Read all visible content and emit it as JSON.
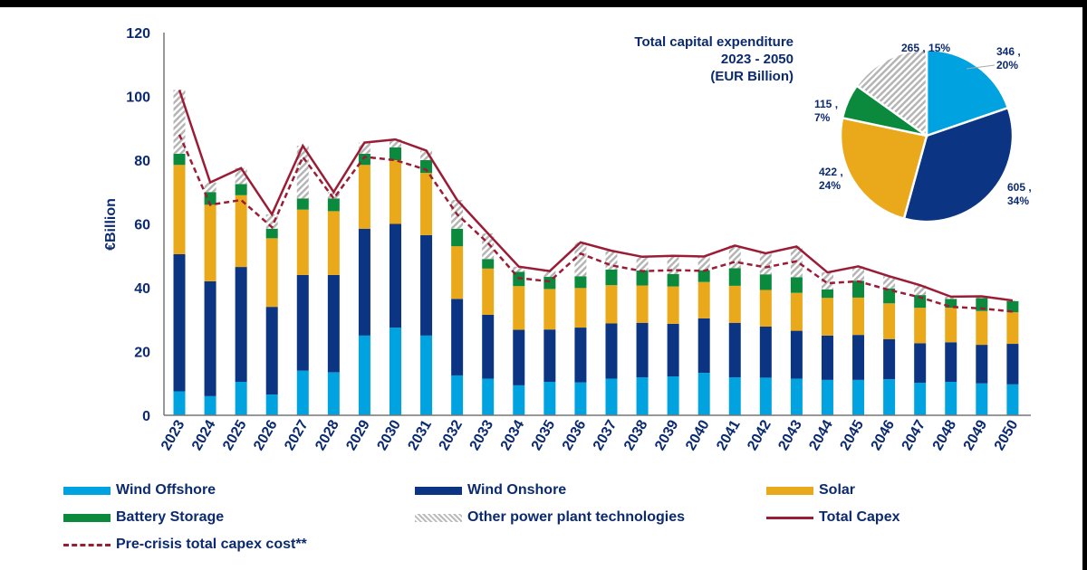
{
  "chart_data": {
    "type": "bar",
    "stacked": true,
    "ylabel": "€Billion",
    "ylim": [
      0,
      120
    ],
    "yticks": [
      0,
      20,
      40,
      60,
      80,
      100,
      120
    ],
    "categories": [
      "2023",
      "2024",
      "2025",
      "2026",
      "2027",
      "2028",
      "2029",
      "2030",
      "2031",
      "2032",
      "2033",
      "2034",
      "2035",
      "2036",
      "2037",
      "2038",
      "2039",
      "2040",
      "2041",
      "2042",
      "2043",
      "2044",
      "2045",
      "2046",
      "2047",
      "2048",
      "2049",
      "2050"
    ],
    "series": [
      {
        "name": "Wind Offshore",
        "color": "#00a3e0",
        "values": [
          7.5,
          6,
          10.5,
          6.5,
          14,
          13.5,
          25,
          27.5,
          25,
          12.5,
          11.5,
          9.4,
          10.5,
          10.3,
          11.5,
          11.9,
          12.2,
          13.3,
          11.9,
          11.8,
          11.5,
          11.1,
          11.1,
          11.3,
          10.2,
          10.5,
          10,
          9.7
        ]
      },
      {
        "name": "Wind Onshore",
        "color": "#0b3583",
        "values": [
          43,
          36,
          36,
          27.5,
          30,
          30.5,
          33.5,
          32.5,
          31.5,
          24,
          20,
          17.4,
          16.4,
          17.2,
          17.3,
          17.1,
          16.5,
          17.1,
          17.1,
          16,
          15,
          13.9,
          14.1,
          12.6,
          12.4,
          12.4,
          12.1,
          12.7
        ]
      },
      {
        "name": "Solar",
        "color": "#eaa81b",
        "values": [
          28,
          24,
          22.5,
          21.5,
          20.5,
          20,
          20,
          20,
          19.5,
          16.5,
          14.5,
          13.7,
          12.7,
          12.4,
          12,
          11.7,
          11.7,
          11.4,
          11.6,
          11.5,
          11.9,
          11.8,
          11.7,
          11.2,
          11.1,
          10.8,
          10.6,
          9.9
        ]
      },
      {
        "name": "Battery Storage",
        "color": "#0b8a3e",
        "values": [
          3.5,
          4,
          3.5,
          3,
          3.5,
          4,
          3.5,
          4,
          4,
          5.5,
          3,
          4.5,
          3.8,
          3.7,
          4.9,
          4.7,
          3.9,
          3.7,
          5.5,
          4.9,
          4.9,
          2.7,
          5.3,
          4.7,
          4,
          2.8,
          4.1,
          3.5
        ]
      },
      {
        "name": "Other power plant technologies",
        "color": "#b5b5b5",
        "values": [
          20,
          3,
          5,
          4.5,
          16.5,
          2,
          3.5,
          2.5,
          3,
          9,
          8,
          1.6,
          1.8,
          10.6,
          5.9,
          4.3,
          5.7,
          4.3,
          7.1,
          6.6,
          9.6,
          5.3,
          4.5,
          3.8,
          3.1,
          0.7,
          0.5,
          0.2
        ]
      }
    ],
    "lines": [
      {
        "name": "Total Capex",
        "color": "#9b1c35",
        "style": "solid",
        "values": [
          102,
          73,
          77.5,
          63,
          84.5,
          70,
          85.5,
          86.5,
          83,
          67.5,
          57,
          46.6,
          45.2,
          54.2,
          51.6,
          49.7,
          50,
          49.8,
          53.2,
          50.8,
          52.9,
          44.8,
          46.7,
          43.6,
          40.8,
          37.2,
          37.3,
          36
        ]
      },
      {
        "name": "Pre-crisis total capex cost**",
        "color": "#9b1c35",
        "style": "dashed",
        "values": [
          88,
          66,
          67.5,
          59,
          81,
          68,
          81,
          80,
          77,
          63,
          54,
          43,
          42,
          50.7,
          47,
          45.2,
          45.5,
          45.3,
          48.1,
          46.4,
          48.3,
          41.4,
          42,
          39.3,
          37,
          34,
          33.5,
          32.5
        ]
      }
    ],
    "legend_position": "bottom",
    "grid": false
  },
  "pie": {
    "title_lines": [
      "Total capital expenditure",
      "2023 - 2050",
      "(EUR Billion)"
    ],
    "slices": [
      {
        "name": "Wind Offshore",
        "value": 346,
        "label_value": "346 ,",
        "label_pct": "20%",
        "color": "#00a3e0"
      },
      {
        "name": "Wind Onshore",
        "value": 605,
        "label_value": "605 ,",
        "label_pct": "34%",
        "color": "#0b3583"
      },
      {
        "name": "Solar",
        "value": 422,
        "label_value": "422 ,",
        "label_pct": "24%",
        "color": "#eaa81b"
      },
      {
        "name": "Battery Storage",
        "value": 115,
        "label_value": "115 ,",
        "label_pct": "7%",
        "color": "#0b8a3e"
      },
      {
        "name": "Other power plant technologies",
        "value": 265,
        "label_value": "265 , 15%",
        "label_pct": "",
        "color": "#b5b5b5"
      }
    ]
  },
  "legend": [
    "Wind Offshore",
    "Wind Onshore",
    "Solar",
    "Battery Storage",
    "Other power plant technologies",
    "Total Capex",
    "Pre-crisis total capex cost**"
  ]
}
